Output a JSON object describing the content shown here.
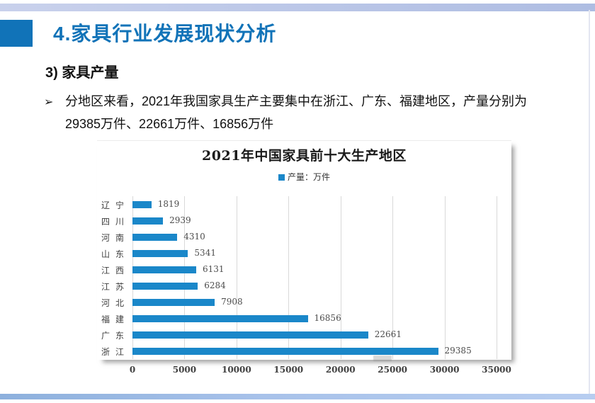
{
  "slide": {
    "page_title": "4.家具行业发展现状分析",
    "section_heading": "3)  家具产量",
    "bullet_marker": "➢",
    "bullet_lines": [
      "分地区来看，2021年我国家具生产主要集中在浙江、广东、福建地区，产量分别为",
      "29385万件、22661万件、16856万件"
    ]
  },
  "colors": {
    "accent_blue": "#1173b8",
    "bar_blue": "#1a87c9",
    "gridline": "#d9d9d9",
    "top_strip": "#bac6e7",
    "bottom_strip": "#a8c2ea"
  },
  "chart_data": {
    "type": "bar",
    "orientation": "horizontal",
    "title": "2021年中国家具前十大生产地区",
    "legend": "产量：万件",
    "legend_position": "top-center",
    "categories": [
      "辽宁",
      "四川",
      "河南",
      "山东",
      "江西",
      "江苏",
      "河北",
      "福建",
      "广东",
      "浙江"
    ],
    "values": [
      1819,
      2939,
      4310,
      5341,
      6131,
      6284,
      7908,
      16856,
      22661,
      29385
    ],
    "x_ticks": [
      0,
      5000,
      10000,
      15000,
      20000,
      25000,
      30000,
      35000
    ],
    "xlim": [
      0,
      35000
    ],
    "grid": "vertical",
    "value_labels": true
  }
}
